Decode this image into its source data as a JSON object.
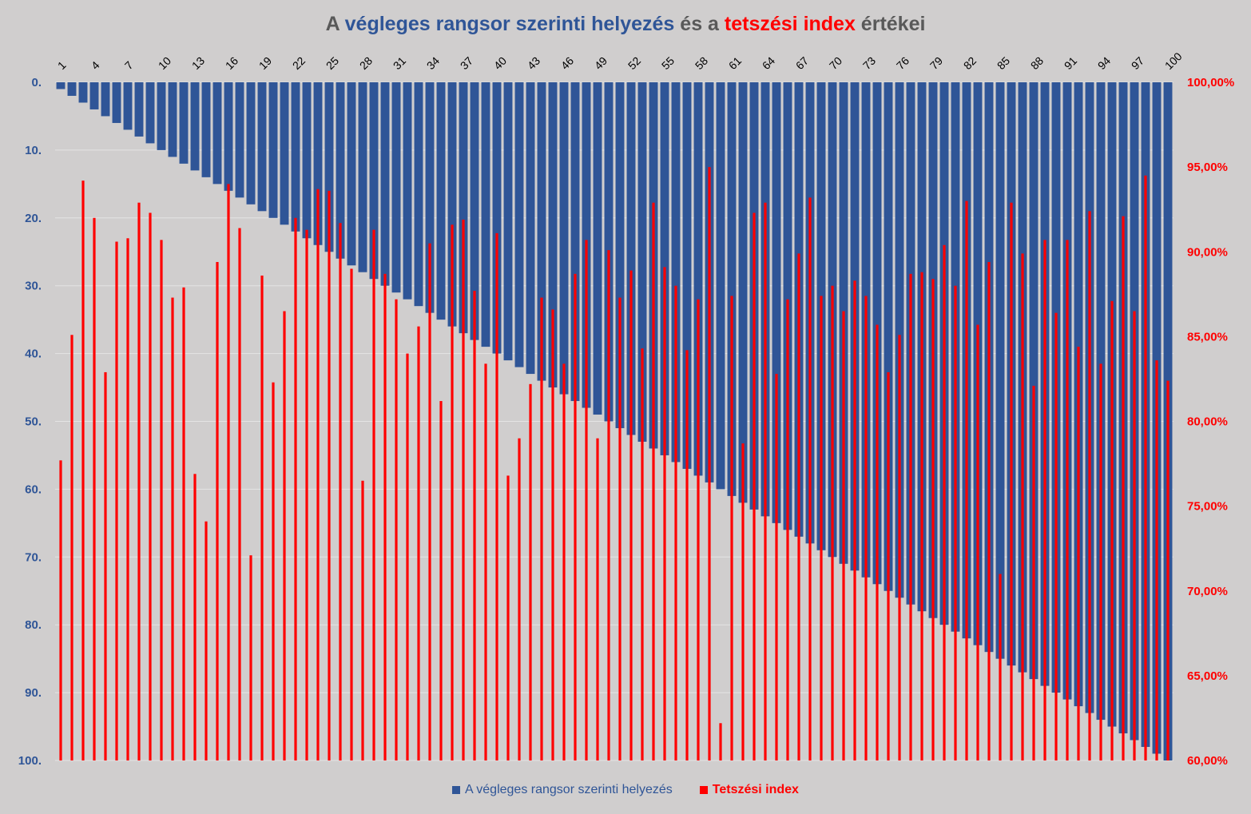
{
  "chart_data": {
    "type": "bar",
    "title": {
      "parts": [
        {
          "text": "A ",
          "color": "gray"
        },
        {
          "text": "végleges rangsor szerinti helyezés",
          "color": "blue"
        },
        {
          "text": " és a ",
          "color": "gray"
        },
        {
          "text": "tetszési index",
          "color": "red"
        },
        {
          "text": " értékei",
          "color": "gray"
        }
      ]
    },
    "colors": {
      "rank": "#2f5597",
      "index": "#ff0000",
      "label_gray": "#595959",
      "grid": "#e4e4e4",
      "background": "#d0cece"
    },
    "x_tick_labels": [
      "1",
      "4",
      "7",
      "10",
      "13",
      "16",
      "19",
      "22",
      "25",
      "28",
      "31",
      "34",
      "37",
      "40",
      "43",
      "46",
      "49",
      "52",
      "55",
      "58",
      "61",
      "64",
      "67",
      "70",
      "73",
      "76",
      "79",
      "82",
      "85",
      "88",
      "91",
      "94",
      "97",
      "100"
    ],
    "x": [
      1,
      2,
      3,
      4,
      5,
      6,
      7,
      8,
      9,
      10,
      11,
      12,
      13,
      14,
      15,
      16,
      17,
      18,
      19,
      20,
      21,
      22,
      23,
      24,
      25,
      26,
      27,
      28,
      29,
      30,
      31,
      32,
      33,
      34,
      35,
      36,
      37,
      38,
      39,
      40,
      41,
      42,
      43,
      44,
      45,
      46,
      47,
      48,
      49,
      50,
      51,
      52,
      53,
      54,
      55,
      56,
      57,
      58,
      59,
      60,
      61,
      62,
      63,
      64,
      65,
      66,
      67,
      68,
      69,
      70,
      71,
      72,
      73,
      74,
      75,
      76,
      77,
      78,
      79,
      80,
      81,
      82,
      83,
      84,
      85,
      86,
      87,
      88,
      89,
      90,
      91,
      92,
      93,
      94,
      95,
      96,
      97,
      98,
      99,
      100
    ],
    "left_axis": {
      "tick_labels": [
        "0.",
        "10.",
        "20.",
        "30.",
        "40.",
        "50.",
        "60.",
        "70.",
        "80.",
        "90.",
        "100."
      ],
      "ylim": [
        0,
        100
      ],
      "reversed": true,
      "color": "#2f5597"
    },
    "right_axis": {
      "tick_labels": [
        "100,00%",
        "95,00%",
        "90,00%",
        "85,00%",
        "80,00%",
        "75,00%",
        "70,00%",
        "65,00%",
        "60,00%"
      ],
      "ylim": [
        60,
        100
      ],
      "color": "#ff0000"
    },
    "series": [
      {
        "name": "A végleges rangsor szerinti helyezés",
        "axis": "left",
        "color": "#2f5597",
        "values": [
          1,
          2,
          3,
          4,
          5,
          6,
          7,
          8,
          9,
          10,
          11,
          12,
          13,
          14,
          15,
          16,
          17,
          18,
          19,
          20,
          21,
          22,
          23,
          24,
          25,
          26,
          27,
          28,
          29,
          30,
          31,
          32,
          33,
          34,
          35,
          36,
          37,
          38,
          39,
          40,
          41,
          42,
          43,
          44,
          45,
          46,
          47,
          48,
          49,
          50,
          51,
          52,
          53,
          54,
          55,
          56,
          57,
          58,
          59,
          60,
          61,
          62,
          63,
          64,
          65,
          66,
          67,
          68,
          69,
          70,
          71,
          72,
          73,
          74,
          75,
          76,
          77,
          78,
          79,
          80,
          81,
          82,
          83,
          84,
          85,
          86,
          87,
          88,
          89,
          90,
          91,
          92,
          93,
          94,
          95,
          96,
          97,
          98,
          99,
          100
        ]
      },
      {
        "name": "Tetszési index",
        "axis": "right",
        "color": "#ff0000",
        "values": [
          77.7,
          85.1,
          94.2,
          92.0,
          82.9,
          90.6,
          90.8,
          92.9,
          92.3,
          90.7,
          87.3,
          87.9,
          76.9,
          74.1,
          89.4,
          94.0,
          91.4,
          72.1,
          88.6,
          82.3,
          86.5,
          92.0,
          91.3,
          93.7,
          93.6,
          91.7,
          89.0,
          76.5,
          91.3,
          88.7,
          87.2,
          84.0,
          85.6,
          90.5,
          81.2,
          91.6,
          91.9,
          87.7,
          83.4,
          91.1,
          76.8,
          79.0,
          82.2,
          87.3,
          86.6,
          83.4,
          88.7,
          90.7,
          79.0,
          90.1,
          87.3,
          88.9,
          84.3,
          92.9,
          89.1,
          88.0,
          84.2,
          87.2,
          95.0,
          62.2,
          87.4,
          78.7,
          92.3,
          92.9,
          82.8,
          87.2,
          89.9,
          93.2,
          87.4,
          88.0,
          86.5,
          88.3,
          87.4,
          85.7,
          82.9,
          85.1,
          88.7,
          88.8,
          88.4,
          90.4,
          88.0,
          93.0,
          85.7,
          89.4,
          71.0,
          92.9,
          89.9,
          82.1,
          90.7,
          86.4,
          90.7,
          84.4,
          92.4,
          83.4,
          87.1,
          92.1,
          86.5,
          94.5,
          83.6,
          82.4
        ]
      }
    ],
    "legend": {
      "position": "bottom"
    },
    "grid": true
  }
}
